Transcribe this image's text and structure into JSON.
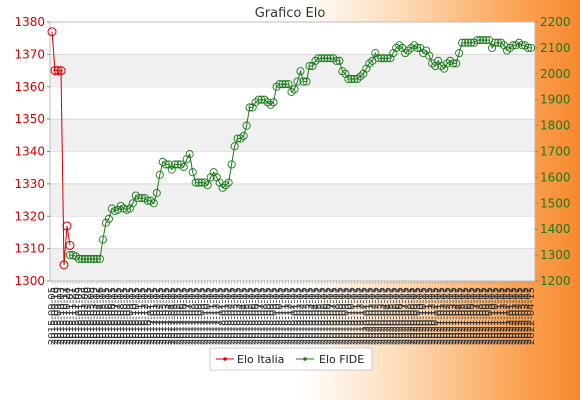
{
  "chart_data": {
    "type": "line",
    "title": "Grafico Elo",
    "axes": {
      "left": {
        "min": 1300,
        "max": 1380,
        "step": 10,
        "color": "#d40000"
      },
      "right": {
        "min": 1200,
        "max": 2200,
        "step": 100,
        "color": "#1b7a1b"
      }
    },
    "grid": true,
    "legend_position": "bottom-center",
    "series": [
      {
        "name": "Elo Italia",
        "axis": "left",
        "color": "#d40000",
        "marker": "dot",
        "values": [
          [
            0,
            1377
          ],
          [
            1,
            1365
          ],
          [
            2,
            1365
          ],
          [
            3,
            1365
          ],
          [
            4,
            1305
          ],
          [
            5,
            1317
          ],
          [
            6,
            1311
          ]
        ]
      },
      {
        "name": "Elo FIDE",
        "axis": "right",
        "color": "#1b7a1b",
        "marker": "circle",
        "values": [
          [
            6,
            1300
          ],
          [
            7,
            1300
          ],
          [
            8,
            1295
          ],
          [
            9,
            1285
          ],
          [
            10,
            1285
          ],
          [
            11,
            1285
          ],
          [
            12,
            1285
          ],
          [
            13,
            1285
          ],
          [
            14,
            1285
          ],
          [
            15,
            1285
          ],
          [
            16,
            1285
          ],
          [
            17,
            1360
          ],
          [
            18,
            1425
          ],
          [
            19,
            1440
          ],
          [
            20,
            1480
          ],
          [
            21,
            1470
          ],
          [
            22,
            1475
          ],
          [
            23,
            1490
          ],
          [
            24,
            1480
          ],
          [
            25,
            1475
          ],
          [
            26,
            1480
          ],
          [
            27,
            1500
          ],
          [
            28,
            1530
          ],
          [
            29,
            1520
          ],
          [
            30,
            1520
          ],
          [
            31,
            1520
          ],
          [
            32,
            1510
          ],
          [
            33,
            1510
          ],
          [
            34,
            1500
          ],
          [
            35,
            1540
          ],
          [
            36,
            1610
          ],
          [
            37,
            1660
          ],
          [
            38,
            1650
          ],
          [
            39,
            1650
          ],
          [
            40,
            1630
          ],
          [
            41,
            1650
          ],
          [
            42,
            1650
          ],
          [
            43,
            1650
          ],
          [
            44,
            1640
          ],
          [
            45,
            1670
          ],
          [
            46,
            1690
          ],
          [
            47,
            1620
          ],
          [
            48,
            1580
          ],
          [
            49,
            1580
          ],
          [
            50,
            1580
          ],
          [
            51,
            1580
          ],
          [
            52,
            1570
          ],
          [
            53,
            1600
          ],
          [
            54,
            1620
          ],
          [
            55,
            1600
          ],
          [
            56,
            1580
          ],
          [
            57,
            1560
          ],
          [
            58,
            1570
          ],
          [
            59,
            1580
          ],
          [
            60,
            1650
          ],
          [
            61,
            1720
          ],
          [
            62,
            1750
          ],
          [
            63,
            1750
          ],
          [
            64,
            1760
          ],
          [
            65,
            1800
          ],
          [
            66,
            1870
          ],
          [
            67,
            1870
          ],
          [
            68,
            1890
          ],
          [
            69,
            1900
          ],
          [
            70,
            1900
          ],
          [
            71,
            1900
          ],
          [
            72,
            1890
          ],
          [
            73,
            1880
          ],
          [
            74,
            1890
          ],
          [
            75,
            1950
          ],
          [
            76,
            1960
          ],
          [
            77,
            1960
          ],
          [
            78,
            1960
          ],
          [
            79,
            1960
          ],
          [
            80,
            1930
          ],
          [
            81,
            1940
          ],
          [
            82,
            1970
          ],
          [
            83,
            2010
          ],
          [
            84,
            1970
          ],
          [
            85,
            1970
          ],
          [
            86,
            2030
          ],
          [
            87,
            2030
          ],
          [
            88,
            2050
          ],
          [
            89,
            2060
          ],
          [
            90,
            2060
          ],
          [
            91,
            2060
          ],
          [
            92,
            2060
          ],
          [
            93,
            2060
          ],
          [
            94,
            2060
          ],
          [
            95,
            2050
          ],
          [
            96,
            2050
          ],
          [
            97,
            2010
          ],
          [
            98,
            2000
          ],
          [
            99,
            1980
          ],
          [
            100,
            1980
          ],
          [
            101,
            1980
          ],
          [
            102,
            1980
          ],
          [
            103,
            1990
          ],
          [
            104,
            2000
          ],
          [
            105,
            2020
          ],
          [
            106,
            2040
          ],
          [
            107,
            2050
          ],
          [
            108,
            2080
          ],
          [
            109,
            2060
          ],
          [
            110,
            2060
          ],
          [
            111,
            2060
          ],
          [
            112,
            2060
          ],
          [
            113,
            2060
          ],
          [
            114,
            2080
          ],
          [
            115,
            2100
          ],
          [
            116,
            2110
          ],
          [
            117,
            2100
          ],
          [
            118,
            2080
          ],
          [
            119,
            2090
          ],
          [
            120,
            2100
          ],
          [
            121,
            2110
          ],
          [
            122,
            2100
          ],
          [
            123,
            2100
          ],
          [
            124,
            2080
          ],
          [
            125,
            2090
          ],
          [
            126,
            2070
          ],
          [
            127,
            2040
          ],
          [
            128,
            2030
          ],
          [
            129,
            2050
          ],
          [
            130,
            2030
          ],
          [
            131,
            2020
          ],
          [
            132,
            2040
          ],
          [
            133,
            2050
          ],
          [
            134,
            2040
          ],
          [
            135,
            2040
          ],
          [
            136,
            2080
          ],
          [
            137,
            2120
          ],
          [
            138,
            2120
          ],
          [
            139,
            2120
          ],
          [
            140,
            2120
          ],
          [
            141,
            2120
          ],
          [
            142,
            2130
          ],
          [
            143,
            2130
          ],
          [
            144,
            2130
          ],
          [
            145,
            2130
          ],
          [
            146,
            2130
          ],
          [
            147,
            2100
          ],
          [
            148,
            2120
          ],
          [
            149,
            2120
          ],
          [
            150,
            2120
          ],
          [
            151,
            2110
          ],
          [
            152,
            2090
          ],
          [
            153,
            2100
          ],
          [
            154,
            2110
          ],
          [
            155,
            2110
          ],
          [
            156,
            2120
          ],
          [
            157,
            2110
          ],
          [
            158,
            2110
          ],
          [
            159,
            2100
          ],
          [
            160,
            2100
          ]
        ]
      }
    ],
    "x_count": 161,
    "categories": [
      "2015-09-05",
      "2015-09-16",
      "2015-09-19",
      "2015-10-03",
      "2015-10-17",
      "2015-10-24",
      "2015-11-07",
      "2015-11-21",
      "2015-12-05",
      "2016-01-09",
      "2016-01-23",
      "2016-02-06",
      "2016-02-20",
      "2016-03-05",
      "2016-03-19",
      "2016-04-02",
      "2016-04-16",
      "2016-05-01",
      "2016-05-15",
      "2016-06-01",
      "2016-06-15",
      "2016-07-01",
      "2016-07-15",
      "2016-08-01",
      "2016-08-15",
      "2016-09-01",
      "2016-09-15",
      "2016-10-01",
      "2016-10-15",
      "2016-11-01",
      "2016-11-15",
      "2016-12-01",
      "2016-12-15",
      "2017-01-01",
      "2017-01-15",
      "2017-02-01",
      "2017-02-15",
      "2017-03-01",
      "2017-03-15",
      "2017-04-01",
      "2017-04-15",
      "2017-05-01",
      "2017-05-15",
      "2017-06-01",
      "2017-06-15",
      "2017-07-01",
      "2017-07-15",
      "2017-08-01",
      "2017-08-15",
      "2017-09-01",
      "2017-09-15",
      "2017-10-01",
      "2017-10-15",
      "2017-11-01",
      "2017-11-15",
      "2017-12-01",
      "2017-12-15",
      "2018-01-01",
      "2018-01-15",
      "2018-02-01",
      "2018-02-15",
      "2018-03-01",
      "2018-03-15",
      "2018-04-01",
      "2018-04-15",
      "2018-05-01",
      "2018-05-15",
      "2018-06-01",
      "2018-06-15",
      "2018-07-01",
      "2018-07-15",
      "2018-08-01",
      "2018-08-15",
      "2018-09-01",
      "2018-09-15",
      "2018-10-01",
      "2018-10-15",
      "2018-11-01",
      "2018-11-15",
      "2018-12-01",
      "2018-12-15",
      "2019-01-01",
      "2019-01-15",
      "2019-02-01",
      "2019-02-15",
      "2019-03-01",
      "2019-03-15",
      "2019-04-01",
      "2019-04-15",
      "2019-05-01",
      "2019-05-15",
      "2019-06-01",
      "2019-06-15",
      "2019-07-01",
      "2019-07-15",
      "2019-08-01",
      "2019-08-15",
      "2019-09-01",
      "2019-09-15",
      "2019-10-01",
      "2019-10-15",
      "2019-11-01",
      "2019-11-15",
      "2019-12-01",
      "2019-12-15",
      "2020-01-01",
      "2020-01-15",
      "2020-02-01",
      "2020-02-15",
      "2020-03-01",
      "2020-03-15",
      "2020-04-01",
      "2020-04-15",
      "2020-05-01",
      "2020-05-15",
      "2020-06-01",
      "2020-06-15",
      "2020-07-01",
      "2020-07-15",
      "2020-08-01",
      "2020-08-15",
      "2020-09-01",
      "2020-09-15",
      "2020-10-01",
      "2020-10-15",
      "2020-11-01",
      "2020-11-15",
      "2020-12-01",
      "2020-12-15",
      "2021-01-01",
      "2021-01-15",
      "2021-02-01",
      "2021-02-15",
      "2021-03-01",
      "2021-03-15",
      "2021-04-01",
      "2021-04-15",
      "2021-05-01",
      "2021-05-15",
      "2021-06-01",
      "2021-06-15",
      "2021-07-01",
      "2021-07-15",
      "2021-08-01",
      "2021-08-15",
      "2021-09-01",
      "2021-09-15",
      "2021-10-01",
      "2021-10-15",
      "2021-11-01",
      "2021-11-15",
      "2021-12-01",
      "2021-12-15",
      "2022-01-01",
      "2022-01-15",
      "2022-02-01",
      "2022-02-15",
      "2022-03-01",
      "2022-03-15",
      "2022-04-01",
      "2022-04-15"
    ]
  }
}
